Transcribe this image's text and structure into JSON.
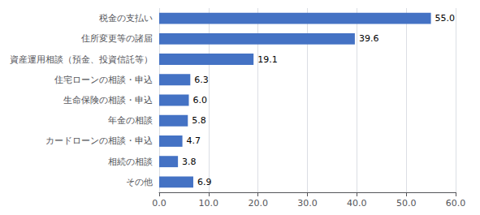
{
  "chart_data": {
    "type": "bar",
    "orientation": "horizontal",
    "categories": [
      "その他",
      "相続の相談",
      "カードローンの相談・申込",
      "年金の相談",
      "生命保険の相談・申込",
      "住宅ローンの相談・申込",
      "資産運用相談（預金、投資信託等）",
      "住所変更等の諸届",
      "税金の支払い"
    ],
    "values": [
      6.9,
      3.8,
      4.7,
      5.8,
      6.0,
      6.3,
      19.1,
      39.6,
      55.0
    ],
    "value_labels": [
      "6.9",
      "3.8",
      "4.7",
      "5.8",
      "6.0",
      "6.3",
      "19.1",
      "39.6",
      "55.0"
    ],
    "data_labels": true,
    "color": "#4472c4",
    "xlim": [
      0,
      60.0
    ],
    "xticks": [
      {
        "value": 0,
        "label": "0.0"
      },
      {
        "value": 10,
        "label": "10.0"
      },
      {
        "value": 20,
        "label": "20.0"
      },
      {
        "value": 30,
        "label": "30.0"
      },
      {
        "value": 40,
        "label": "40.0"
      },
      {
        "value": 50,
        "label": "50.0"
      },
      {
        "value": 60,
        "label": "60.0"
      }
    ],
    "grid": true
  }
}
